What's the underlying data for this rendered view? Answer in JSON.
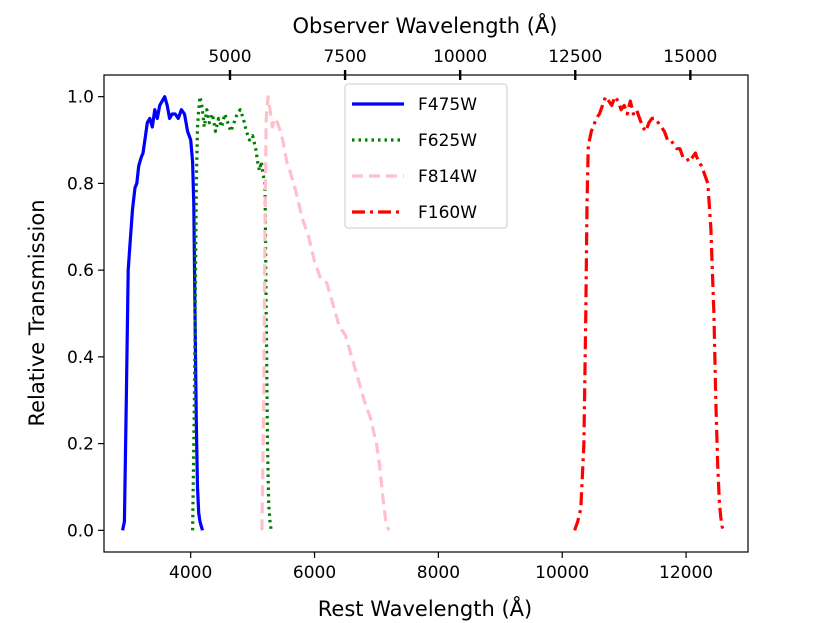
{
  "chart_data": {
    "type": "line",
    "xlabel": "Rest Wavelength (Å)",
    "ylabel": "Relative Transmission",
    "top_xlabel": "Observer Wavelength (Å)",
    "xlim": [
      2600,
      13000
    ],
    "ylim": [
      -0.05,
      1.05
    ],
    "x_ticks": [
      4000,
      6000,
      8000,
      10000,
      12000
    ],
    "x_tick_labels": [
      "4000",
      "6000",
      "8000",
      "10000",
      "12000"
    ],
    "y_ticks": [
      0.0,
      0.2,
      0.4,
      0.6,
      0.8,
      1.0
    ],
    "y_tick_labels": [
      "0.0",
      "0.2",
      "0.4",
      "0.6",
      "0.8",
      "1.0"
    ],
    "top_x_tick_rest": [
      4634.5,
      6493.1,
      8351.7,
      10210.3,
      12069.0
    ],
    "top_x_tick_labels": [
      "5000",
      "7500",
      "10000",
      "12500",
      "15000"
    ],
    "legend": {
      "position": "top-center",
      "entries": [
        "F475W",
        "F625W",
        "F814W",
        "F160W"
      ]
    },
    "series": [
      {
        "name": "F475W",
        "color": "#0000ff",
        "style": "solid",
        "x": [
          2900,
          2930,
          2960,
          2990,
          3020,
          3060,
          3100,
          3130,
          3160,
          3200,
          3230,
          3260,
          3300,
          3340,
          3380,
          3420,
          3460,
          3500,
          3540,
          3580,
          3620,
          3660,
          3700,
          3750,
          3800,
          3850,
          3900,
          3950,
          4000,
          4030,
          4050,
          4070,
          4090,
          4110,
          4130,
          4150,
          4170,
          4190
        ],
        "y": [
          0.0,
          0.02,
          0.3,
          0.6,
          0.66,
          0.74,
          0.79,
          0.8,
          0.84,
          0.86,
          0.87,
          0.9,
          0.94,
          0.95,
          0.93,
          0.97,
          0.95,
          0.98,
          0.99,
          1.0,
          0.98,
          0.95,
          0.96,
          0.96,
          0.95,
          0.97,
          0.96,
          0.92,
          0.9,
          0.85,
          0.75,
          0.5,
          0.25,
          0.1,
          0.04,
          0.02,
          0.01,
          0.0
        ]
      },
      {
        "name": "F625W",
        "color": "#008000",
        "style": "dotted",
        "x": [
          4030,
          4060,
          4090,
          4110,
          4130,
          4150,
          4180,
          4220,
          4260,
          4300,
          4350,
          4400,
          4450,
          4500,
          4550,
          4600,
          4650,
          4700,
          4750,
          4800,
          4850,
          4900,
          4950,
          5000,
          5050,
          5080,
          5110,
          5140,
          5170,
          5200,
          5220,
          5240,
          5260,
          5280,
          5300
        ],
        "y": [
          0.0,
          0.3,
          0.8,
          0.93,
          0.97,
          1.0,
          0.98,
          0.93,
          0.97,
          0.94,
          0.96,
          0.92,
          0.95,
          0.93,
          0.96,
          0.94,
          0.92,
          0.94,
          0.96,
          0.97,
          0.95,
          0.92,
          0.9,
          0.91,
          0.88,
          0.85,
          0.83,
          0.85,
          0.82,
          0.8,
          0.5,
          0.2,
          0.06,
          0.02,
          0.0
        ]
      },
      {
        "name": "F814W",
        "color": "#ffc0cb",
        "style": "dashed",
        "x": [
          5150,
          5180,
          5200,
          5220,
          5250,
          5280,
          5320,
          5350,
          5400,
          5450,
          5500,
          5550,
          5600,
          5700,
          5800,
          5900,
          6000,
          6100,
          6200,
          6300,
          6400,
          6500,
          6600,
          6700,
          6800,
          6900,
          7000,
          7050,
          7100,
          7150,
          7200
        ],
        "y": [
          0.0,
          0.3,
          0.7,
          0.95,
          1.0,
          0.97,
          0.93,
          0.95,
          0.94,
          0.92,
          0.89,
          0.85,
          0.83,
          0.78,
          0.72,
          0.68,
          0.62,
          0.58,
          0.57,
          0.52,
          0.47,
          0.45,
          0.4,
          0.35,
          0.3,
          0.26,
          0.2,
          0.15,
          0.08,
          0.02,
          0.0
        ]
      },
      {
        "name": "F160W",
        "color": "#ff0000",
        "style": "dashdot",
        "x": [
          10200,
          10250,
          10300,
          10350,
          10380,
          10400,
          10420,
          10440,
          10470,
          10500,
          10550,
          10600,
          10650,
          10700,
          10750,
          10800,
          10850,
          10900,
          10950,
          11000,
          11050,
          11100,
          11150,
          11200,
          11250,
          11300,
          11350,
          11400,
          11450,
          11500,
          11550,
          11600,
          11650,
          11700,
          11750,
          11800,
          11850,
          11900,
          11950,
          12000,
          12050,
          12100,
          12150,
          12200,
          12250,
          12300,
          12350,
          12400,
          12450,
          12480,
          12510,
          12540,
          12560,
          12580,
          12600
        ],
        "y": [
          0.0,
          0.02,
          0.05,
          0.2,
          0.5,
          0.75,
          0.88,
          0.9,
          0.92,
          0.93,
          0.95,
          0.96,
          0.98,
          1.0,
          0.99,
          0.98,
          1.0,
          0.99,
          0.97,
          0.98,
          0.96,
          0.99,
          0.96,
          0.97,
          0.95,
          0.93,
          0.92,
          0.94,
          0.95,
          0.95,
          0.94,
          0.93,
          0.92,
          0.9,
          0.9,
          0.89,
          0.88,
          0.88,
          0.86,
          0.86,
          0.85,
          0.86,
          0.87,
          0.85,
          0.84,
          0.82,
          0.8,
          0.7,
          0.5,
          0.3,
          0.15,
          0.06,
          0.03,
          0.01,
          0.0
        ]
      }
    ]
  }
}
